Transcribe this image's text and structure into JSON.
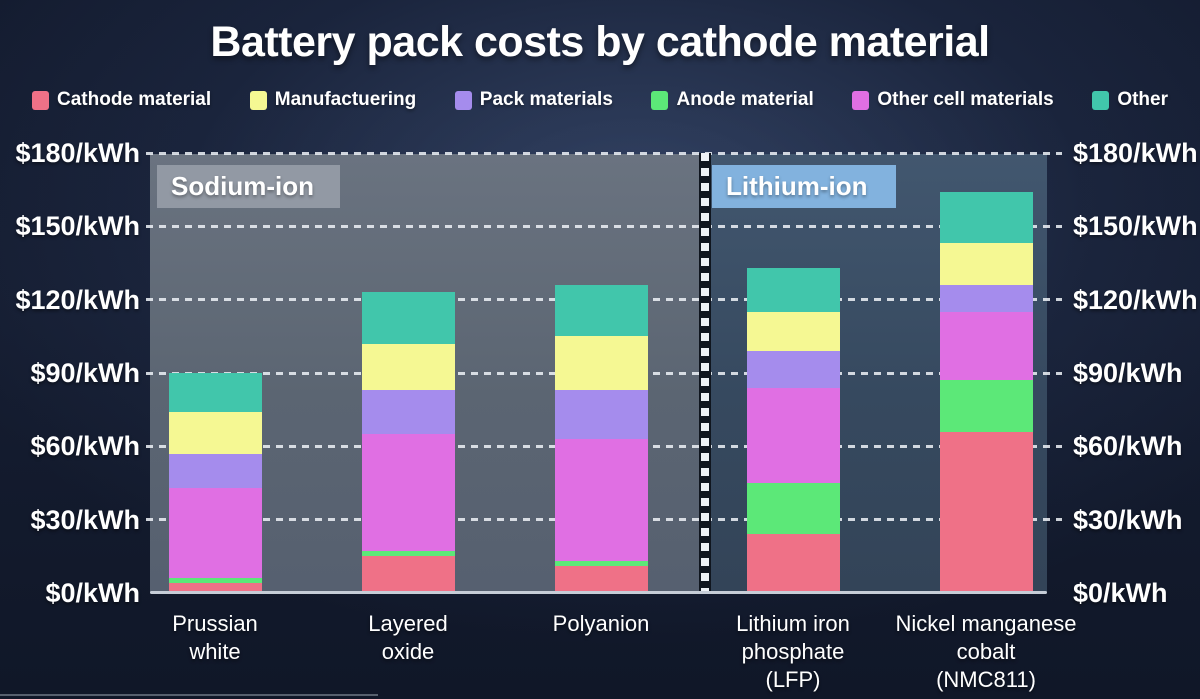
{
  "title": "Battery pack costs by cathode material",
  "legend": {
    "items": [
      {
        "label": "Cathode material",
        "color": "#ef7187"
      },
      {
        "label": "Manufactuering",
        "color": "#f5f893"
      },
      {
        "label": "Pack materials",
        "color": "#a58ced"
      },
      {
        "label": "Anode material",
        "color": "#5ce878"
      },
      {
        "label": "Other cell materials",
        "color": "#e06fe3"
      },
      {
        "label": "Other",
        "color": "#41c6ab"
      }
    ]
  },
  "sections": [
    {
      "label": "Sodium-ion",
      "badge_color": "#9299a4"
    },
    {
      "label": "Lithium-ion",
      "badge_color": "#82b2de"
    }
  ],
  "axis": {
    "unit": "$/kWh",
    "tick_values": [
      180,
      150,
      120,
      90,
      60,
      30,
      0
    ],
    "tick_labels": [
      "$180/kWh",
      "$150/kWh",
      "$120/kWh",
      "$90/kWh",
      "$60/kWh",
      "$30/kWh",
      "$0/kWh"
    ]
  },
  "chart_data": {
    "type": "bar",
    "stacked": true,
    "title": "Battery pack costs by cathode material",
    "xlabel": "",
    "ylabel": "$/kWh",
    "ylim": [
      0,
      180
    ],
    "grid": "dashed horizontal, both-side tick labels",
    "legend_position": "top",
    "categories": [
      "Prussian white",
      "Layered oxide",
      "Polyanion",
      "Lithium iron phosphate (LFP)",
      "Nickel manganese cobalt (NMC811)"
    ],
    "category_lines": [
      [
        "Prussian",
        "white"
      ],
      [
        "Layered",
        "oxide"
      ],
      [
        "Polyanion"
      ],
      [
        "Lithium iron",
        "phosphate",
        "(LFP)"
      ],
      [
        "Nickel manganese",
        "cobalt",
        "(NMC811)"
      ]
    ],
    "category_groups": [
      "Sodium-ion",
      "Sodium-ion",
      "Sodium-ion",
      "Lithium-ion",
      "Lithium-ion"
    ],
    "series_bottom_to_top": [
      {
        "name": "Cathode material",
        "color": "#ef7187",
        "values": [
          4,
          15,
          11,
          24,
          66
        ]
      },
      {
        "name": "Anode material",
        "color": "#5ce878",
        "values": [
          2,
          2,
          2,
          21,
          21
        ]
      },
      {
        "name": "Other cell materials",
        "color": "#e06fe3",
        "values": [
          37,
          48,
          50,
          39,
          28
        ]
      },
      {
        "name": "Pack materials",
        "color": "#a58ced",
        "values": [
          14,
          18,
          20,
          15,
          11
        ]
      },
      {
        "name": "Manufactuering",
        "color": "#f5f893",
        "values": [
          17,
          19,
          22,
          16,
          17
        ]
      },
      {
        "name": "Other",
        "color": "#41c6ab",
        "values": [
          16,
          21,
          21,
          18,
          21
        ]
      }
    ],
    "totals": [
      90,
      123,
      126,
      133,
      164
    ]
  }
}
